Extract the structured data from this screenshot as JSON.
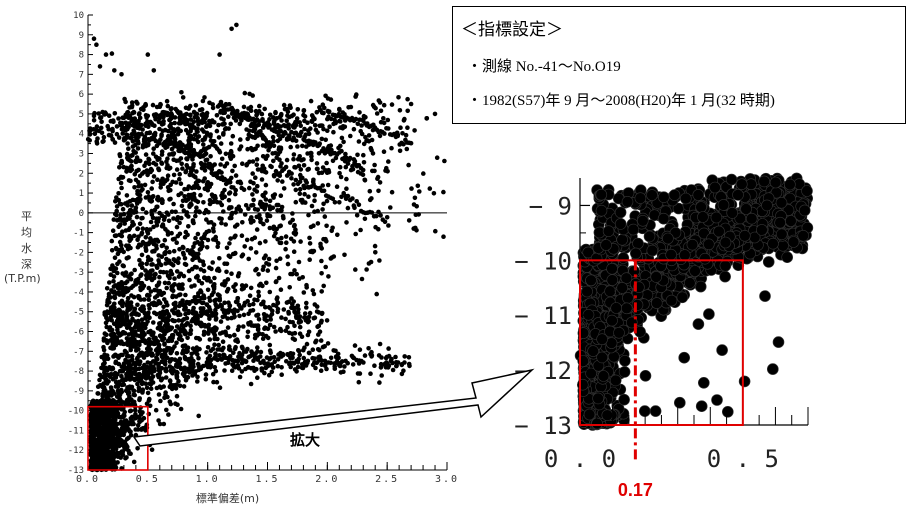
{
  "legend": {
    "title": "＜指標設定＞",
    "lines": [
      "・測線 No.-41〜No.O19",
      "・1982(S57)年 9 月〜2008(H20)年 1 月(32 時期)"
    ]
  },
  "zoom_label": "拡大",
  "threshold_label": "0.17",
  "colors": {
    "points": "#000000",
    "highlight": "#e00000",
    "axis": "#000000"
  },
  "chart_data": [
    {
      "type": "scatter",
      "xlabel": "標準偏差(m)",
      "ylabel": "平均水深(T.P.m)",
      "ylabel_chars": [
        "平",
        "均",
        "水",
        "深",
        "(T.P.m)"
      ],
      "xlim": [
        0,
        3.0
      ],
      "ylim": [
        -13,
        10
      ],
      "xticks": [
        "0.0",
        "0.5",
        "1.0",
        "1.5",
        "2.0",
        "2.5",
        "3.0"
      ],
      "yticks": [
        "10",
        "9",
        "8",
        "7",
        "6",
        "5",
        "4",
        "3",
        "2",
        "1",
        "0",
        "-1",
        "-2",
        "-3",
        "-4",
        "-5",
        "-6",
        "-7",
        "-8",
        "-9",
        "-10",
        "-11",
        "-12",
        "-13"
      ],
      "zero_line": 0,
      "highlight_region": {
        "x": [
          0,
          0.5
        ],
        "y": [
          -13,
          -9.8
        ]
      }
    },
    {
      "type": "scatter",
      "xlim": [
        0,
        0.7
      ],
      "ylim": [
        -13,
        -8.5
      ],
      "xticks": [
        "0.0",
        "0.5"
      ],
      "yticks": [
        "-9",
        "-10",
        "-11",
        "-12",
        "-13"
      ],
      "highlight_region": {
        "x": [
          0,
          0.5
        ],
        "y": [
          -13,
          -10
        ]
      },
      "threshold_x": 0.17
    }
  ]
}
